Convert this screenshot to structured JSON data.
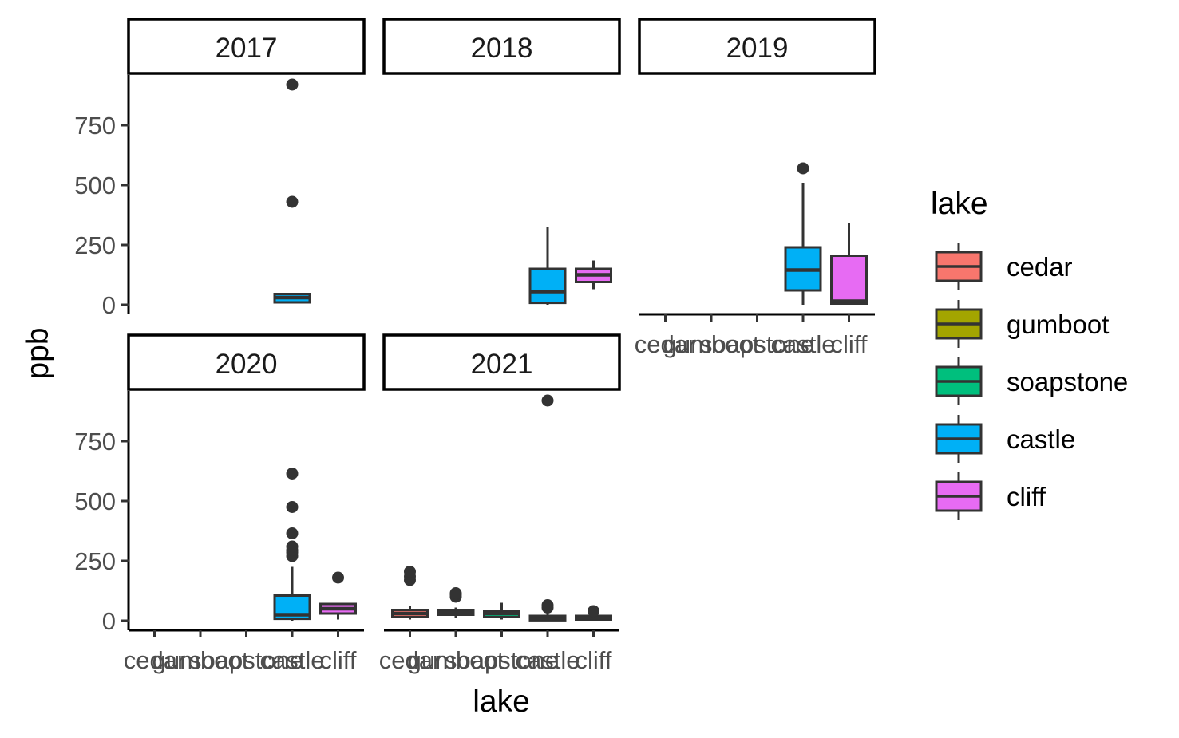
{
  "chart_data": {
    "type": "boxplot",
    "facet_by": "year",
    "xlabel": "lake",
    "ylabel": "ppb",
    "ylim": [
      -40,
      960
    ],
    "y_ticks": [
      0,
      250,
      500,
      750
    ],
    "categories": [
      "cedar",
      "gumboot",
      "soapstone",
      "castle",
      "cliff"
    ],
    "legend": {
      "title": "lake",
      "position": "right",
      "entries": [
        {
          "name": "cedar",
          "color": "#F8766D"
        },
        {
          "name": "gumboot",
          "color": "#A3A500"
        },
        {
          "name": "soapstone",
          "color": "#00BF7D"
        },
        {
          "name": "castle",
          "color": "#00B0F6"
        },
        {
          "name": "cliff",
          "color": "#E76BF3"
        }
      ]
    },
    "facets": [
      {
        "label": "2017",
        "boxes": [
          {
            "lake": "castle",
            "min": 5,
            "q1": 10,
            "median": 30,
            "q3": 45,
            "max": 45,
            "outliers": [
              430,
              920
            ]
          }
        ]
      },
      {
        "label": "2018",
        "boxes": [
          {
            "lake": "castle",
            "min": 0,
            "q1": 8,
            "median": 55,
            "q3": 150,
            "max": 325,
            "outliers": []
          },
          {
            "lake": "cliff",
            "min": 65,
            "q1": 95,
            "median": 125,
            "q3": 150,
            "max": 185,
            "outliers": []
          }
        ]
      },
      {
        "label": "2019",
        "boxes": [
          {
            "lake": "castle",
            "min": 0,
            "q1": 60,
            "median": 145,
            "q3": 240,
            "max": 510,
            "outliers": [
              570
            ]
          },
          {
            "lake": "cliff",
            "min": 0,
            "q1": 5,
            "median": 15,
            "q3": 205,
            "max": 340,
            "outliers": []
          }
        ]
      },
      {
        "label": "2020",
        "boxes": [
          {
            "lake": "castle",
            "min": 0,
            "q1": 8,
            "median": 25,
            "q3": 105,
            "max": 225,
            "outliers": [
              270,
              285,
              295,
              310,
              365,
              475,
              615
            ]
          },
          {
            "lake": "cliff",
            "min": 5,
            "q1": 30,
            "median": 50,
            "q3": 70,
            "max": 70,
            "outliers": [
              180
            ]
          }
        ]
      },
      {
        "label": "2021",
        "boxes": [
          {
            "lake": "cedar",
            "min": 5,
            "q1": 15,
            "median": 30,
            "q3": 45,
            "max": 60,
            "outliers": [
              170,
              185,
              205
            ]
          },
          {
            "lake": "gumboot",
            "min": 10,
            "q1": 25,
            "median": 35,
            "q3": 45,
            "max": 55,
            "outliers": [
              100,
              110,
              115
            ]
          },
          {
            "lake": "soapstone",
            "min": 5,
            "q1": 15,
            "median": 30,
            "q3": 40,
            "max": 75,
            "outliers": []
          },
          {
            "lake": "castle",
            "min": 0,
            "q1": 2,
            "median": 8,
            "q3": 20,
            "max": 40,
            "outliers": [
              55,
              65,
              920
            ]
          },
          {
            "lake": "cliff",
            "min": 0,
            "q1": 5,
            "median": 12,
            "q3": 20,
            "max": 30,
            "outliers": [
              40
            ]
          }
        ]
      }
    ]
  }
}
